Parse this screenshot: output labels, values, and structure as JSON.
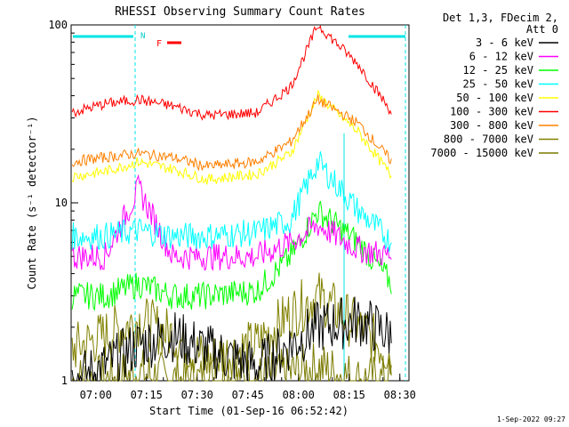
{
  "chart_data": {
    "type": "line",
    "title": "RHESSI Observing Summary Count Rates",
    "xlabel": "Start Time (01-Sep-16 06:52:42)",
    "ylabel": "Count Rate (s⁻¹ detector⁻¹)",
    "yscale": "log",
    "ylim": [
      1,
      100
    ],
    "y_ticks": [
      {
        "value": 1,
        "label": "1"
      },
      {
        "value": 10,
        "label": "10"
      },
      {
        "value": 100,
        "label": "100"
      }
    ],
    "x_range_minutes": [
      "06:52:42",
      "08:32:42"
    ],
    "x_ticks": [
      "07:00",
      "07:15",
      "07:30",
      "07:45",
      "08:00",
      "08:15",
      "08:30"
    ],
    "legend_header": [
      "Det 1,3, FDecim 2,",
      "Att 0"
    ],
    "legend_position": "right",
    "grid": false,
    "flags": {
      "N": "N",
      "F": "F"
    },
    "series": [
      {
        "name": "3 - 6 keV",
        "color": "#000000",
        "values": [
          1.0,
          1.2,
          1.6,
          1.8,
          1.5,
          1.2,
          1.6,
          2.0,
          2.2,
          1.8
        ]
      },
      {
        "name": "6 - 12 keV",
        "color": "#ff00ff",
        "values": [
          5.0,
          5.0,
          12.0,
          5.0,
          5.0,
          5.0,
          6.0,
          7.5,
          5.5,
          5.0
        ]
      },
      {
        "name": "12 - 25 keV",
        "color": "#00ff00",
        "values": [
          3.0,
          3.0,
          3.5,
          3.0,
          3.0,
          3.2,
          5.0,
          9.0,
          6.0,
          3.5
        ]
      },
      {
        "name": "25 - 50 keV",
        "color": "#00ffff",
        "values": [
          6.5,
          6.5,
          7.0,
          6.5,
          6.5,
          6.8,
          8.0,
          17.0,
          9.0,
          6.0
        ]
      },
      {
        "name": "50 - 100 keV",
        "color": "#ffff00",
        "values": [
          14.0,
          15.0,
          17.0,
          15.5,
          13.5,
          14.5,
          19.0,
          40.0,
          25.0,
          14.0
        ]
      },
      {
        "name": "100 - 300 keV",
        "color": "#ff0000",
        "values": [
          32.0,
          36.0,
          38.0,
          35.0,
          31.0,
          32.0,
          45.0,
          100.0,
          60.0,
          32.0
        ]
      },
      {
        "name": "300 - 800 keV",
        "color": "#ff8000",
        "values": [
          17.0,
          18.0,
          19.0,
          18.0,
          16.0,
          17.0,
          22.0,
          38.0,
          28.0,
          17.0
        ]
      },
      {
        "name": "800 - 7000 keV",
        "color": "#808000",
        "values": [
          1.5,
          1.8,
          2.2,
          1.8,
          1.3,
          1.6,
          2.4,
          3.0,
          2.0,
          1.4
        ]
      },
      {
        "name": "7000 - 15000 keV",
        "color": "#7a7a00",
        "values": [
          1.0,
          1.0,
          1.1,
          1.0,
          1.0,
          1.0,
          1.1,
          1.2,
          1.0,
          1.0
        ]
      }
    ],
    "series_x_minutes_from_start": [
      0,
      10,
      20,
      30,
      40,
      55,
      65,
      73,
      85,
      95
    ],
    "legend_labels": [
      "3 - 6 keV",
      "6 - 12 keV",
      "12 - 25 keV",
      "25 - 50 keV",
      "50 - 100 keV",
      "100 - 300 keV",
      "300 - 800 keV",
      "800 - 7000 keV",
      "7000 - 15000 keV"
    ],
    "footer_date": "1-Sep-2022 09:27"
  }
}
